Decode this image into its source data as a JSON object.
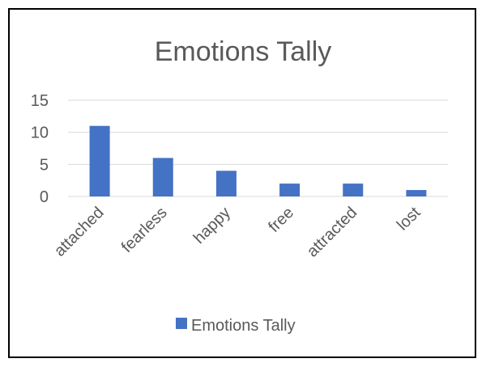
{
  "chart_data": {
    "type": "bar",
    "title": "Emotions Tally",
    "categories": [
      "attached",
      "fearless",
      "happy",
      "free",
      "attracted",
      "lost"
    ],
    "series": [
      {
        "name": "Emotions Tally",
        "values": [
          11,
          6,
          4,
          2,
          2,
          1
        ]
      }
    ],
    "ylim": [
      0,
      15
    ],
    "yticks": [
      0,
      5,
      10,
      15
    ],
    "grid": true,
    "legend": "bottom",
    "bar_color": "#4472C4"
  }
}
